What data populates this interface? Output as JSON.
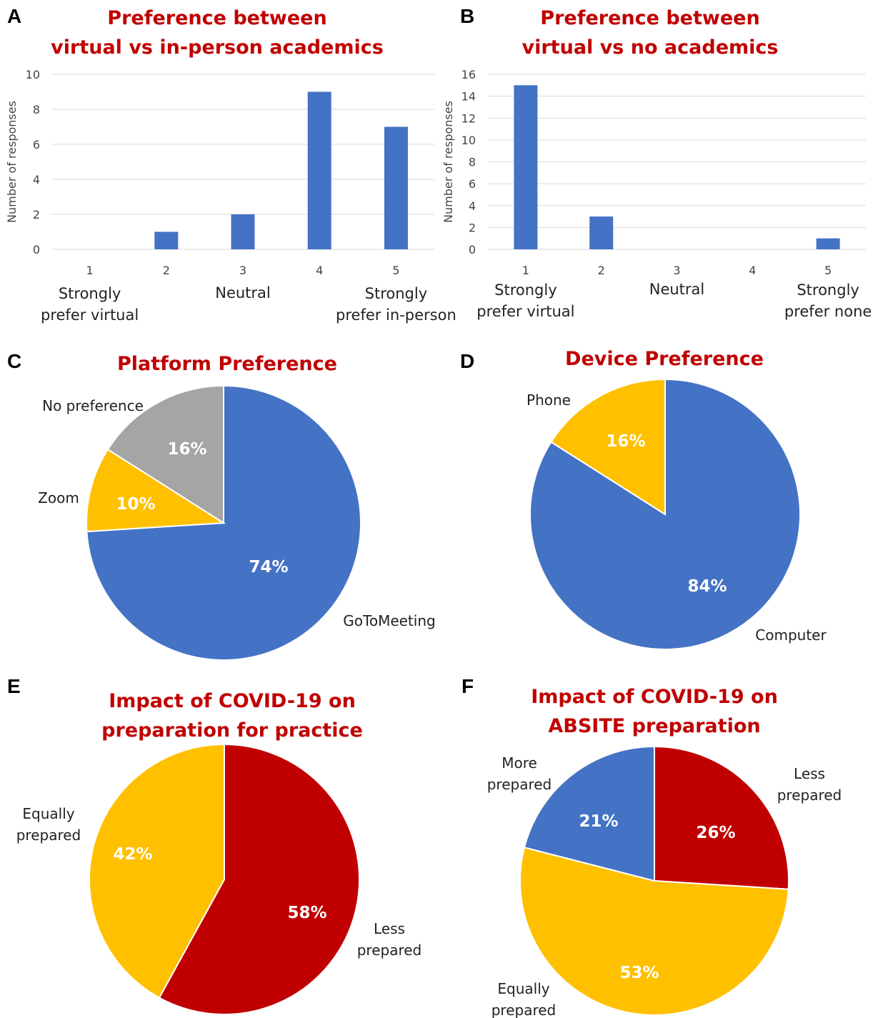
{
  "colors": {
    "title": "#c00000",
    "blue": "#4472c4",
    "gold": "#ffc000",
    "gray": "#a5a5a5",
    "red": "#c00000",
    "grid": "#d9d9d9"
  },
  "chart_data": [
    {
      "panel": "A",
      "type": "bar",
      "title": [
        "Preference between",
        "virtual vs in-person academics"
      ],
      "ylabel": "Number of responses",
      "categories": [
        "1",
        "2",
        "3",
        "4",
        "5"
      ],
      "category_labels": [
        [
          "Strongly",
          "prefer virtual"
        ],
        [],
        [
          "Neutral"
        ],
        [],
        [
          "Strongly",
          "prefer in-person"
        ]
      ],
      "values": [
        0,
        1,
        2,
        9,
        7
      ],
      "ylim": [
        0,
        10
      ],
      "yticks": [
        0,
        2,
        4,
        6,
        8,
        10
      ],
      "grid": true,
      "color": "#4472c4"
    },
    {
      "panel": "B",
      "type": "bar",
      "title": [
        "Preference between",
        "virtual vs no academics"
      ],
      "ylabel": "Number of responses",
      "categories": [
        "1",
        "2",
        "3",
        "4",
        "5"
      ],
      "category_labels": [
        [
          "Strongly",
          "prefer virtual"
        ],
        [],
        [
          "Neutral"
        ],
        [],
        [
          "Strongly",
          "prefer none"
        ]
      ],
      "values": [
        15,
        3,
        0,
        0,
        1
      ],
      "ylim": [
        0,
        16
      ],
      "yticks": [
        0,
        2,
        4,
        6,
        8,
        10,
        12,
        14,
        16
      ],
      "grid": true,
      "color": "#4472c4"
    },
    {
      "panel": "C",
      "type": "pie",
      "title": [
        "Platform Preference"
      ],
      "slices": [
        {
          "label": [
            "GoToMeeting"
          ],
          "value": 74,
          "pct": "74%",
          "color": "#4472c4"
        },
        {
          "label": [
            "Zoom"
          ],
          "value": 10,
          "pct": "10%",
          "color": "#ffc000"
        },
        {
          "label": [
            "No preference"
          ],
          "value": 16,
          "pct": "16%",
          "color": "#a5a5a5"
        }
      ]
    },
    {
      "panel": "D",
      "type": "pie",
      "title": [
        "Device Preference"
      ],
      "slices": [
        {
          "label": [
            "Computer"
          ],
          "value": 84,
          "pct": "84%",
          "color": "#4472c4"
        },
        {
          "label": [
            "Phone"
          ],
          "value": 16,
          "pct": "16%",
          "color": "#ffc000"
        }
      ]
    },
    {
      "panel": "E",
      "type": "pie",
      "title": [
        "Impact of COVID-19 on",
        "preparation for practice"
      ],
      "slices": [
        {
          "label": [
            "Less",
            "prepared"
          ],
          "value": 58,
          "pct": "58%",
          "color": "#c00000"
        },
        {
          "label": [
            "Equally",
            "prepared"
          ],
          "value": 42,
          "pct": "42%",
          "color": "#ffc000"
        }
      ]
    },
    {
      "panel": "F",
      "type": "pie",
      "title": [
        "Impact of COVID-19 on",
        "ABSITE preparation"
      ],
      "slices": [
        {
          "label": [
            "Less",
            "prepared"
          ],
          "value": 26,
          "pct": "26%",
          "color": "#c00000"
        },
        {
          "label": [
            "Equally",
            "prepared"
          ],
          "value": 53,
          "pct": "53%",
          "color": "#ffc000"
        },
        {
          "label": [
            "More",
            "prepared"
          ],
          "value": 21,
          "pct": "21%",
          "color": "#4472c4"
        }
      ]
    }
  ]
}
